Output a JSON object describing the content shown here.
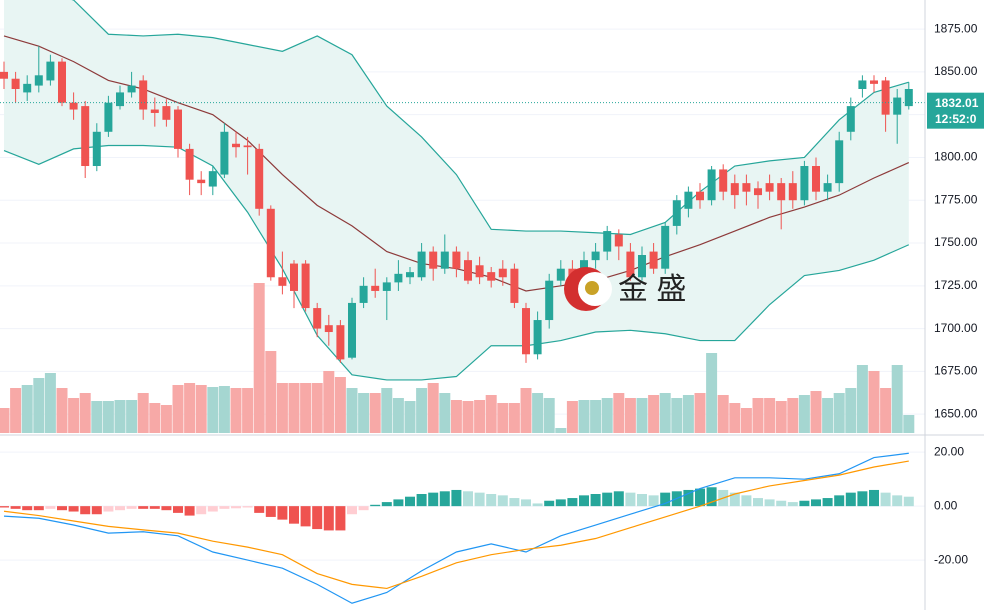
{
  "chart_data": {
    "type": "candlestick",
    "up_color": "#26a69a",
    "down_color": "#ef5350",
    "volume_up_color": "#a5d6d1",
    "volume_down_color": "#f7a9a7",
    "open": [
      1850,
      1846,
      1838,
      1842,
      1845,
      1856,
      1832,
      1830,
      1795,
      1815,
      1830,
      1838,
      1845,
      1828,
      1830,
      1828,
      1805,
      1787,
      1783,
      1790,
      1808,
      1807,
      1805,
      1770,
      1730,
      1738,
      1738,
      1712,
      1702,
      1702,
      1683,
      1715,
      1725,
      1722,
      1727,
      1730,
      1730,
      1745,
      1735,
      1745,
      1740,
      1737,
      1733,
      1735,
      1735,
      1712,
      1685,
      1705,
      1728,
      1735,
      1725,
      1740,
      1745,
      1755,
      1745,
      1730,
      1745,
      1735,
      1760,
      1770,
      1780,
      1775,
      1793,
      1785,
      1785,
      1782,
      1785,
      1785,
      1785,
      1775,
      1795,
      1780,
      1785,
      1815,
      1840,
      1845,
      1845,
      1825,
      1830
    ],
    "high": [
      1856,
      1850,
      1848,
      1865,
      1860,
      1858,
      1838,
      1833,
      1820,
      1836,
      1842,
      1850,
      1848,
      1835,
      1834,
      1830,
      1808,
      1792,
      1795,
      1820,
      1815,
      1812,
      1808,
      1772,
      1745,
      1740,
      1740,
      1715,
      1708,
      1705,
      1718,
      1730,
      1735,
      1730,
      1740,
      1736,
      1750,
      1748,
      1755,
      1748,
      1745,
      1742,
      1736,
      1740,
      1738,
      1715,
      1710,
      1732,
      1740,
      1740,
      1745,
      1750,
      1760,
      1758,
      1750,
      1748,
      1750,
      1762,
      1778,
      1783,
      1785,
      1795,
      1796,
      1790,
      1790,
      1786,
      1790,
      1788,
      1792,
      1798,
      1800,
      1790,
      1815,
      1835,
      1848,
      1848,
      1847,
      1840,
      1844
    ],
    "low": [
      1840,
      1832,
      1833,
      1838,
      1842,
      1830,
      1822,
      1788,
      1792,
      1812,
      1828,
      1835,
      1822,
      1818,
      1818,
      1800,
      1778,
      1778,
      1778,
      1788,
      1800,
      1790,
      1766,
      1728,
      1720,
      1712,
      1710,
      1695,
      1690,
      1680,
      1682,
      1712,
      1718,
      1705,
      1722,
      1726,
      1728,
      1728,
      1732,
      1730,
      1726,
      1726,
      1724,
      1725,
      1712,
      1680,
      1682,
      1700,
      1725,
      1722,
      1720,
      1735,
      1740,
      1740,
      1728,
      1728,
      1732,
      1732,
      1755,
      1765,
      1770,
      1772,
      1775,
      1770,
      1772,
      1770,
      1775,
      1758,
      1770,
      1772,
      1775,
      1775,
      1780,
      1810,
      1835,
      1838,
      1815,
      1808,
      1828
    ],
    "close": [
      1846,
      1840,
      1843,
      1848,
      1856,
      1832,
      1828,
      1795,
      1815,
      1832,
      1838,
      1842,
      1828,
      1826,
      1822,
      1805,
      1787,
      1785,
      1792,
      1815,
      1806,
      1806,
      1770,
      1730,
      1725,
      1722,
      1712,
      1700,
      1698,
      1682,
      1715,
      1725,
      1722,
      1727,
      1732,
      1733,
      1745,
      1735,
      1745,
      1735,
      1728,
      1730,
      1728,
      1730,
      1715,
      1685,
      1705,
      1728,
      1735,
      1725,
      1740,
      1745,
      1757,
      1748,
      1730,
      1743,
      1735,
      1760,
      1775,
      1780,
      1775,
      1793,
      1780,
      1778,
      1780,
      1778,
      1780,
      1775,
      1775,
      1795,
      1780,
      1785,
      1810,
      1830,
      1845,
      1843,
      1825,
      1835,
      1840
    ],
    "volume": [
      25,
      45,
      48,
      55,
      60,
      45,
      35,
      40,
      32,
      32,
      33,
      33,
      40,
      30,
      28,
      48,
      50,
      48,
      46,
      47,
      45,
      45,
      150,
      82,
      50,
      50,
      50,
      50,
      62,
      56,
      45,
      40,
      40,
      45,
      35,
      32,
      45,
      50,
      40,
      33,
      32,
      33,
      38,
      30,
      30,
      45,
      40,
      35,
      5,
      32,
      33,
      33,
      35,
      40,
      35,
      35,
      38,
      40,
      35,
      38,
      40,
      80,
      38,
      30,
      25,
      35,
      35,
      32,
      35,
      38,
      42,
      35,
      40,
      45,
      68,
      62,
      45,
      68,
      18
    ],
    "bands": {
      "x": [
        0,
        3,
        6,
        9,
        12,
        15,
        18,
        21,
        24,
        27,
        30,
        33,
        36,
        39,
        42,
        45,
        48,
        51,
        54,
        57,
        60,
        63,
        66,
        69,
        72,
        75,
        78
      ],
      "fill": "#e8f5f3",
      "upper": {
        "color": "#26a69a",
        "values": [
          1905,
          1898,
          1892,
          1872,
          1871,
          1872,
          1870,
          1866,
          1862,
          1871,
          1860,
          1830,
          1812,
          1790,
          1758,
          1757,
          1757,
          1756,
          1755,
          1762,
          1780,
          1795,
          1798,
          1800,
          1822,
          1838,
          1844
        ]
      },
      "middle": {
        "color": "#8d3a3a",
        "values": [
          1871,
          1865,
          1856,
          1845,
          1840,
          1832,
          1825,
          1810,
          1790,
          1772,
          1760,
          1745,
          1738,
          1735,
          1730,
          1722,
          1725,
          1728,
          1734,
          1742,
          1749,
          1757,
          1765,
          1771,
          1778,
          1788,
          1797
        ]
      },
      "lower": {
        "color": "#26a69a",
        "values": [
          1804,
          1796,
          1805,
          1807,
          1807,
          1806,
          1795,
          1768,
          1735,
          1696,
          1673,
          1670,
          1670,
          1672,
          1690,
          1690,
          1693,
          1698,
          1699,
          1697,
          1693,
          1693,
          1714,
          1731,
          1734,
          1740,
          1749
        ]
      }
    },
    "ylim": [
      1639,
      1892
    ],
    "yticks": [
      {
        "value": 1875,
        "label": "1875.00"
      },
      {
        "value": 1850,
        "label": "1850.00"
      },
      {
        "value": 1825,
        "label": "1825.00"
      },
      {
        "value": 1800,
        "label": "1800.00"
      },
      {
        "value": 1775,
        "label": "1775.00"
      },
      {
        "value": 1750,
        "label": "1750.00"
      },
      {
        "value": 1725,
        "label": "1725.00"
      },
      {
        "value": 1700,
        "label": "1700.00"
      },
      {
        "value": 1675,
        "label": "1675.00"
      },
      {
        "value": 1650,
        "label": "1650.00"
      }
    ],
    "last_price": {
      "value": 1832.01,
      "label": "1832.01",
      "time": "12:52:0"
    },
    "watermark": "金 盛",
    "macd": {
      "ylim": [
        -38.5,
        26
      ],
      "yticks": [
        {
          "value": 20,
          "label": "20.00"
        },
        {
          "value": 0,
          "label": "0.00"
        },
        {
          "value": -20,
          "label": "-20.00"
        }
      ],
      "histogram": [
        -0.5,
        -1,
        -1.5,
        -1.5,
        -1,
        -1.5,
        -2,
        -3,
        -3,
        -2,
        -1.5,
        -1,
        -1,
        -1,
        -1.5,
        -2.5,
        -3.5,
        -3,
        -2,
        -1,
        -0.8,
        -0.5,
        -2.5,
        -4,
        -5,
        -6.5,
        -7.5,
        -8.5,
        -9,
        -9,
        -3,
        -1.5,
        0.5,
        1.5,
        2.5,
        3.5,
        4.5,
        5,
        5.5,
        6,
        5.5,
        5,
        4.5,
        4,
        3,
        2.5,
        1,
        2,
        2.5,
        3,
        4,
        4.5,
        5,
        5.5,
        5,
        4.5,
        4,
        5,
        5.5,
        6,
        6.5,
        7,
        6,
        5,
        4,
        3,
        2.5,
        2,
        1.5,
        2,
        2.5,
        3,
        4,
        5,
        5.5,
        6,
        5,
        4,
        3.5
      ],
      "colors": {
        "up_rise": "#26a69a",
        "up_fall": "#b2dfdb",
        "down_fall": "#ef5350",
        "down_rise": "#ffcdd2"
      },
      "x": [
        0,
        3,
        6,
        9,
        12,
        15,
        18,
        21,
        24,
        27,
        30,
        33,
        36,
        39,
        42,
        45,
        48,
        51,
        54,
        57,
        60,
        63,
        66,
        69,
        72,
        75,
        78
      ],
      "series": [
        {
          "color": "#2196f3",
          "values": [
            -3.7,
            -4.5,
            -7,
            -10,
            -9.5,
            -11,
            -17,
            -20,
            -23,
            -29,
            -36,
            -32,
            -24,
            -17,
            -14,
            -17,
            -11,
            -7,
            -3,
            1,
            6.5,
            10.5,
            10.5,
            10,
            12,
            18,
            19.6
          ]
        },
        {
          "color": "#ff9800",
          "values": [
            -1.9,
            -3.5,
            -5.5,
            -7.5,
            -8.8,
            -10,
            -13,
            -15.2,
            -18,
            -25,
            -29,
            -30.5,
            -26,
            -21,
            -18,
            -16,
            -14.5,
            -12,
            -8,
            -4,
            0,
            4.5,
            7.5,
            9.5,
            11.5,
            14.5,
            16.7
          ]
        }
      ]
    }
  }
}
